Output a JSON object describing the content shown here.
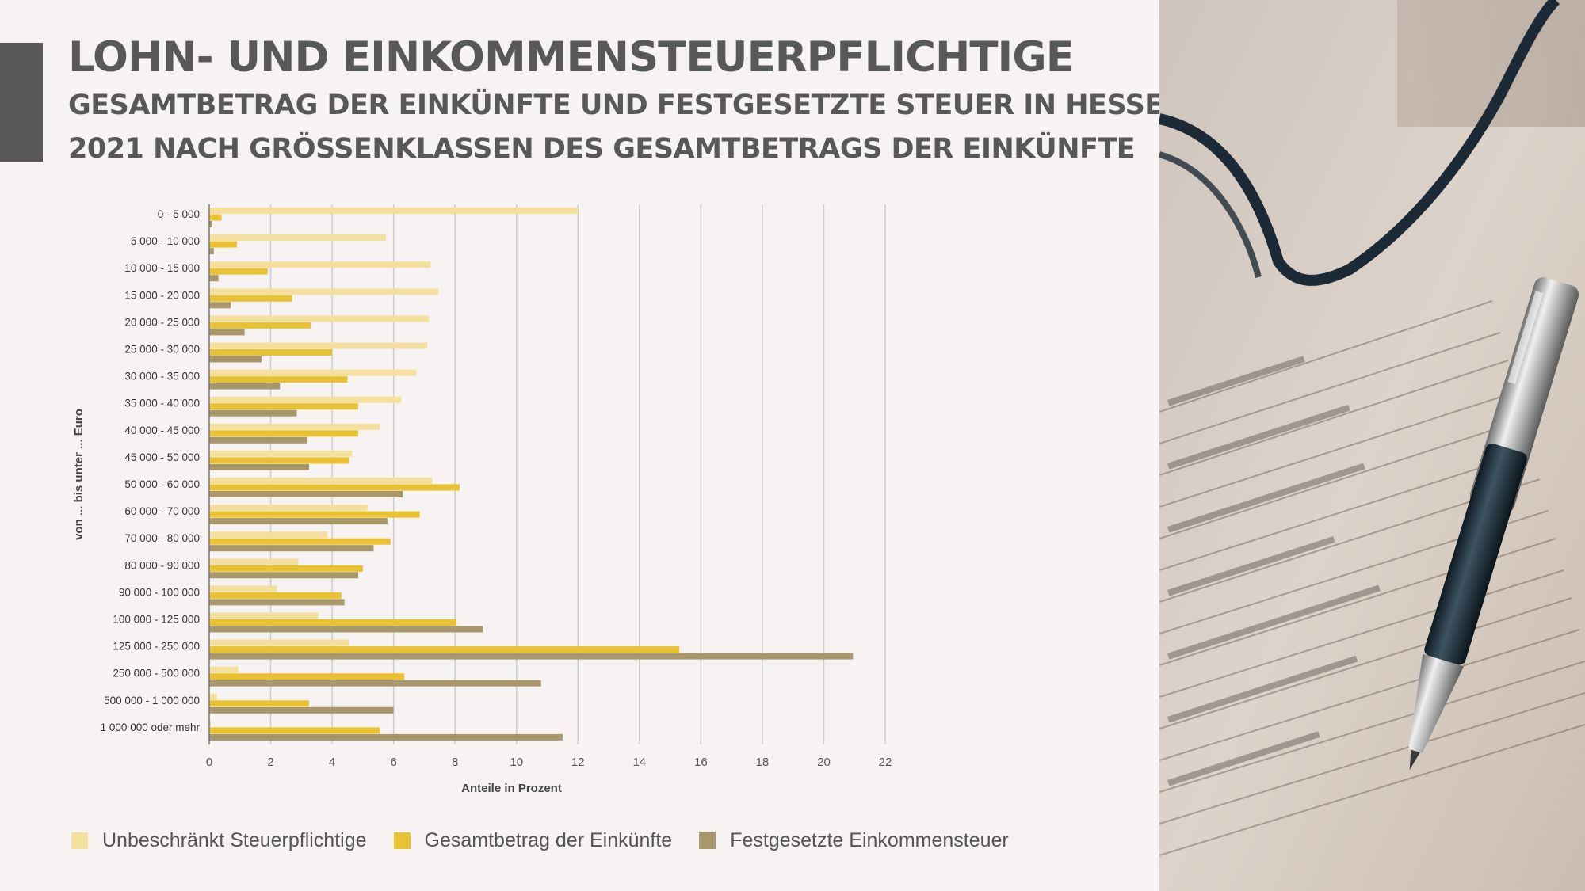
{
  "header": {
    "title": "LOHN- UND EINKOMMENSTEUERPFLICHTIGE",
    "subtitle_line1": "GESAMTBETRAG DER EINKÜNFTE UND FESTGESETZTE STEUER IN HESSEN",
    "subtitle_line2": "2021 NACH GRÖSSENKLASSEN DES GESAMTBETRAGS DER EINKÜNFTE"
  },
  "colors": {
    "accent": "#585858",
    "series_1": "#f5df9e",
    "series_2": "#e8c232",
    "series_3": "#a8976a",
    "grid": "#cccccc",
    "background": "#f7f3f2"
  },
  "legend": [
    {
      "label": "Unbeschränkt Steuerpflichtige",
      "color": "#f5df9e"
    },
    {
      "label": "Gesamtbetrag der Einkünfte",
      "color": "#e8c232"
    },
    {
      "label": "Festgesetzte Einkommensteuer",
      "color": "#a8976a"
    }
  ],
  "photo": {
    "description_icon": "glasses-and-pen-on-tax-form-photo"
  },
  "chart_data": {
    "type": "bar",
    "orientation": "horizontal",
    "categories": [
      "0 - 5 000",
      "5 000 - 10 000",
      "10 000 - 15 000",
      "15 000 - 20 000",
      "20 000 - 25 000",
      "25 000 - 30 000",
      "30 000 - 35 000",
      "35 000 - 40 000",
      "40 000 - 45 000",
      "45 000 - 50 000",
      "50 000 - 60 000",
      "60 000 - 70 000",
      "70 000 - 80 000",
      "80 000 - 90 000",
      "90 000 - 100 000",
      "100 000 - 125 000",
      "125 000 - 250 000",
      "250 000 - 500 000",
      "500 000 - 1 000 000",
      "1 000 000 oder mehr"
    ],
    "series": [
      {
        "name": "Unbeschränkt Steuerpflichtige",
        "values": [
          12.0,
          5.75,
          7.2,
          7.45,
          7.15,
          7.1,
          6.75,
          6.25,
          5.55,
          4.65,
          7.25,
          5.15,
          3.85,
          2.9,
          2.2,
          3.55,
          4.55,
          0.95,
          0.25,
          0.05
        ]
      },
      {
        "name": "Gesamtbetrag der Einkünfte",
        "values": [
          0.4,
          0.9,
          1.9,
          2.7,
          3.3,
          4.0,
          4.5,
          4.85,
          4.85,
          4.55,
          8.15,
          6.85,
          5.9,
          5.0,
          4.3,
          8.05,
          15.3,
          6.35,
          3.25,
          5.55
        ]
      },
      {
        "name": "Festgesetzte Einkommensteuer",
        "values": [
          0.1,
          0.15,
          0.3,
          0.7,
          1.15,
          1.7,
          2.3,
          2.85,
          3.2,
          3.25,
          6.3,
          5.8,
          5.35,
          4.85,
          4.4,
          8.9,
          20.95,
          10.8,
          6.0,
          11.5
        ]
      }
    ],
    "xlabel": "Anteile in Prozent",
    "ylabel": "von ... bis unter ... Euro",
    "xticks": [
      "0",
      "2",
      "4",
      "6",
      "8",
      "10",
      "12",
      "14",
      "16",
      "18",
      "20",
      "22"
    ],
    "xlim": [
      0,
      22
    ],
    "grid": "vertical",
    "legend_position": "bottom"
  }
}
